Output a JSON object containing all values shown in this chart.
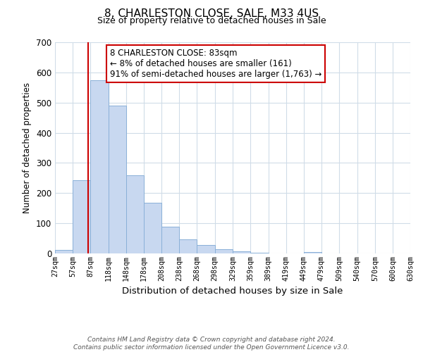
{
  "title": "8, CHARLESTON CLOSE, SALE, M33 4US",
  "subtitle": "Size of property relative to detached houses in Sale",
  "xlabel": "Distribution of detached houses by size in Sale",
  "ylabel": "Number of detached properties",
  "bar_edges": [
    27,
    57,
    87,
    118,
    148,
    178,
    208,
    238,
    268,
    298,
    329,
    359,
    389,
    419,
    449,
    479,
    509,
    540,
    570,
    600,
    630
  ],
  "bar_heights": [
    12,
    243,
    575,
    490,
    258,
    169,
    88,
    46,
    27,
    13,
    7,
    2,
    0,
    0,
    5,
    0,
    0,
    0,
    0,
    0
  ],
  "bar_color": "#c8d8f0",
  "bar_edge_color": "#8ab0d8",
  "property_line_x": 83,
  "property_line_color": "#cc0000",
  "annotation_title": "8 CHARLESTON CLOSE: 83sqm",
  "annotation_line1": "← 8% of detached houses are smaller (161)",
  "annotation_line2": "91% of semi-detached houses are larger (1,763) →",
  "annotation_box_color": "#ffffff",
  "annotation_box_edge": "#cc0000",
  "ylim": [
    0,
    700
  ],
  "yticks": [
    0,
    100,
    200,
    300,
    400,
    500,
    600,
    700
  ],
  "tick_labels": [
    "27sqm",
    "57sqm",
    "87sqm",
    "118sqm",
    "148sqm",
    "178sqm",
    "208sqm",
    "238sqm",
    "268sqm",
    "298sqm",
    "329sqm",
    "359sqm",
    "389sqm",
    "419sqm",
    "449sqm",
    "479sqm",
    "509sqm",
    "540sqm",
    "570sqm",
    "600sqm",
    "630sqm"
  ],
  "footer1": "Contains HM Land Registry data © Crown copyright and database right 2024.",
  "footer2": "Contains public sector information licensed under the Open Government Licence v3.0.",
  "background_color": "#ffffff",
  "grid_color": "#d0dce8"
}
